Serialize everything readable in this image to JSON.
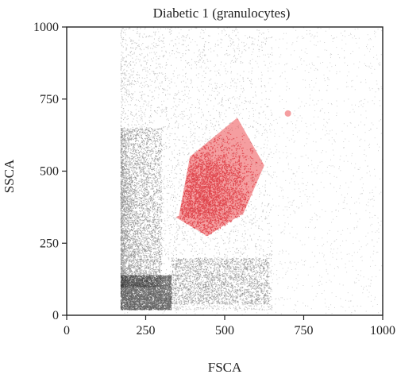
{
  "chart_data": {
    "type": "scatter",
    "title": "Diabetic 1 (granulocytes)",
    "xlabel": "FSCA",
    "ylabel": "SSCA",
    "xlim": [
      0,
      1000
    ],
    "ylim": [
      0,
      1000
    ],
    "xticks": [
      0,
      250,
      500,
      750,
      1000
    ],
    "yticks": [
      0,
      250,
      500,
      750,
      1000
    ],
    "grid": false,
    "series": [
      {
        "role": "all-events",
        "color": "#000000",
        "note": "dense event cloud, sharp left edge near FSCA 170, densest at FSCA 180-330 / SSCA 20-120",
        "density_regions": [
          {
            "x": [
              170,
              330
            ],
            "y": [
              20,
              140
            ],
            "weight": 0.3
          },
          {
            "x": [
              170,
              300
            ],
            "y": [
              100,
              650
            ],
            "weight": 0.28
          },
          {
            "x": [
              170,
              650
            ],
            "y": [
              20,
              1000
            ],
            "weight": 0.27
          },
          {
            "x": [
              330,
              640
            ],
            "y": [
              40,
              200
            ],
            "weight": 0.15
          }
        ]
      },
      {
        "role": "gated-granulocytes",
        "color": "#e8282d",
        "gate_polygon": [
          [
            355,
            345
          ],
          [
            390,
            550
          ],
          [
            540,
            685
          ],
          [
            625,
            520
          ],
          [
            560,
            355
          ],
          [
            445,
            275
          ],
          [
            345,
            340
          ]
        ],
        "center": [
          440,
          430
        ]
      }
    ],
    "annotations": [
      {
        "type": "marker",
        "x": 700,
        "y": 700,
        "color": "#e8282d"
      }
    ]
  }
}
